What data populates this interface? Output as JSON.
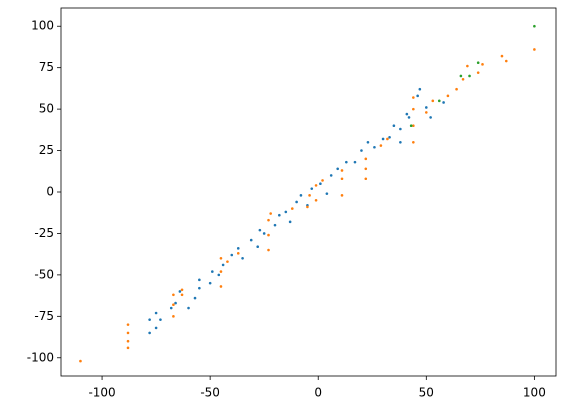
{
  "chart_data": {
    "type": "scatter",
    "xlim": [
      -119,
      110
    ],
    "ylim": [
      -111,
      111
    ],
    "xticks": [
      -100,
      -50,
      0,
      50,
      100
    ],
    "yticks": [
      -100,
      -75,
      -50,
      -25,
      0,
      25,
      50,
      75,
      100
    ],
    "grid": false,
    "series": [
      {
        "color": "#1f77b4",
        "x": [
          -78,
          -78,
          -75,
          -75,
          -73,
          -68,
          -66,
          -64,
          -60,
          -57,
          -55,
          -55,
          -50,
          -49,
          -46,
          -44,
          -40,
          -37,
          -35,
          -31,
          -28,
          -27,
          -25,
          -20,
          -18,
          -15,
          -13,
          -10,
          -8,
          -5,
          -3,
          1,
          4,
          6,
          9,
          13,
          17,
          20,
          23,
          26,
          30,
          33,
          35,
          38,
          38,
          41,
          42,
          46,
          47,
          50,
          52,
          58
        ],
        "values": [
          -85,
          -77,
          -82,
          -73,
          -77,
          -70,
          -67,
          -60,
          -70,
          -64,
          -58,
          -53,
          -55,
          -48,
          -50,
          -44,
          -38,
          -34,
          -40,
          -29,
          -33,
          -23,
          -25,
          -20,
          -14,
          -12,
          -18,
          -6,
          -2,
          -8,
          2,
          5,
          -1,
          10,
          14,
          18,
          18,
          25,
          30,
          27,
          32,
          33,
          40,
          30,
          38,
          47,
          45,
          58,
          62,
          51,
          45,
          54
        ]
      },
      {
        "color": "#ff7f0e",
        "x": [
          -110,
          -88,
          -88,
          -88,
          -88,
          -67,
          -67,
          -67,
          -63,
          -63,
          -45,
          -45,
          -45,
          -42,
          -37,
          -23,
          -23,
          -23,
          -22,
          -12,
          -5,
          -4,
          -1,
          -1,
          2,
          11,
          11,
          11,
          22,
          22,
          22,
          29,
          32,
          44,
          44,
          44,
          44,
          50,
          53,
          60,
          64,
          67,
          69,
          74,
          76,
          85,
          87,
          100
        ],
        "values": [
          -102,
          -94,
          -90,
          -85,
          -80,
          -75,
          -68,
          -62,
          -62,
          -59,
          -57,
          -48,
          -40,
          -42,
          -37,
          -35,
          -26,
          -17,
          -13,
          -10,
          -9,
          -2,
          -5,
          4,
          7,
          -2,
          8,
          13,
          8,
          14,
          20,
          28,
          32,
          30,
          40,
          50,
          57,
          48,
          55,
          58,
          62,
          68,
          76,
          72,
          77,
          82,
          79,
          86
        ]
      },
      {
        "color": "#2ca02c",
        "x": [
          43,
          56,
          66,
          70,
          74,
          100
        ],
        "values": [
          40,
          55,
          70,
          70,
          78,
          100
        ]
      }
    ]
  }
}
